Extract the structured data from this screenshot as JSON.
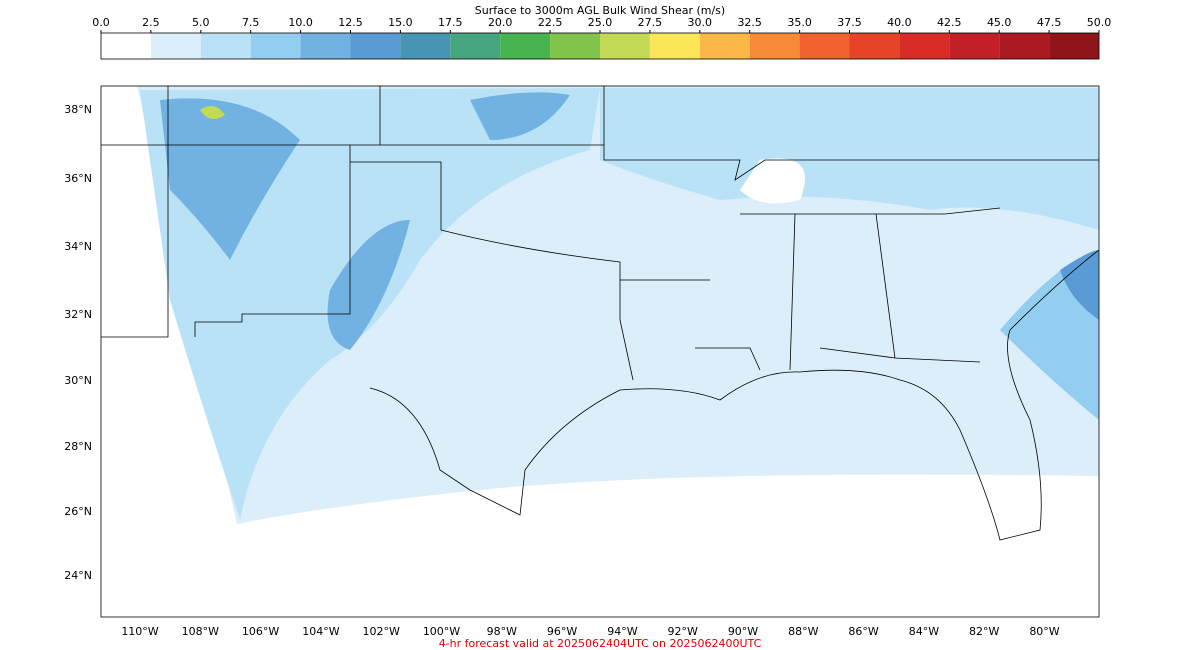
{
  "colorbar": {
    "title": "Surface to 3000m AGL Bulk Wind Shear (m/s)",
    "ticks": [
      {
        "value": 0,
        "label": "0.0"
      },
      {
        "value": 2.5,
        "label": "2.5"
      },
      {
        "value": 5,
        "label": "5.0"
      },
      {
        "value": 7.5,
        "label": "7.5"
      },
      {
        "value": 10,
        "label": "10.0"
      },
      {
        "value": 12.5,
        "label": "12.5"
      },
      {
        "value": 15,
        "label": "15.0"
      },
      {
        "value": 17.5,
        "label": "17.5"
      },
      {
        "value": 20,
        "label": "20.0"
      },
      {
        "value": 22.5,
        "label": "22.5"
      },
      {
        "value": 25,
        "label": "25.0"
      },
      {
        "value": 27.5,
        "label": "27.5"
      },
      {
        "value": 30,
        "label": "30.0"
      },
      {
        "value": 32.5,
        "label": "32.5"
      },
      {
        "value": 35,
        "label": "35.0"
      },
      {
        "value": 37.5,
        "label": "37.5"
      },
      {
        "value": 40,
        "label": "40.0"
      },
      {
        "value": 42.5,
        "label": "42.5"
      },
      {
        "value": 45,
        "label": "45.0"
      },
      {
        "value": 47.5,
        "label": "47.5"
      },
      {
        "value": 50,
        "label": "50.0"
      }
    ],
    "colors": [
      "#ffffff",
      "#dbeffb",
      "#b9e2f7",
      "#93cdef",
      "#72b2e2",
      "#5a9bd5",
      "#4894b4",
      "#45a57e",
      "#48b450",
      "#82c34b",
      "#c2da56",
      "#fbe65a",
      "#f9b847",
      "#f68c38",
      "#f0622e",
      "#e64429",
      "#d92b28",
      "#c31f26",
      "#a91a22",
      "#8e1519"
    ]
  },
  "map": {
    "lat_labels": [
      "38°N",
      "36°N",
      "34°N",
      "32°N",
      "30°N",
      "28°N",
      "26°N",
      "24°N"
    ],
    "lon_labels": [
      "110°W",
      "108°W",
      "106°W",
      "104°W",
      "102°W",
      "100°W",
      "98°W",
      "96°W",
      "94°W",
      "92°W",
      "90°W",
      "88°W",
      "86°W",
      "84°W",
      "82°W",
      "80°W"
    ]
  },
  "footer": "4-hr forecast valid at 2025062404UTC on 2025062400UTC"
}
